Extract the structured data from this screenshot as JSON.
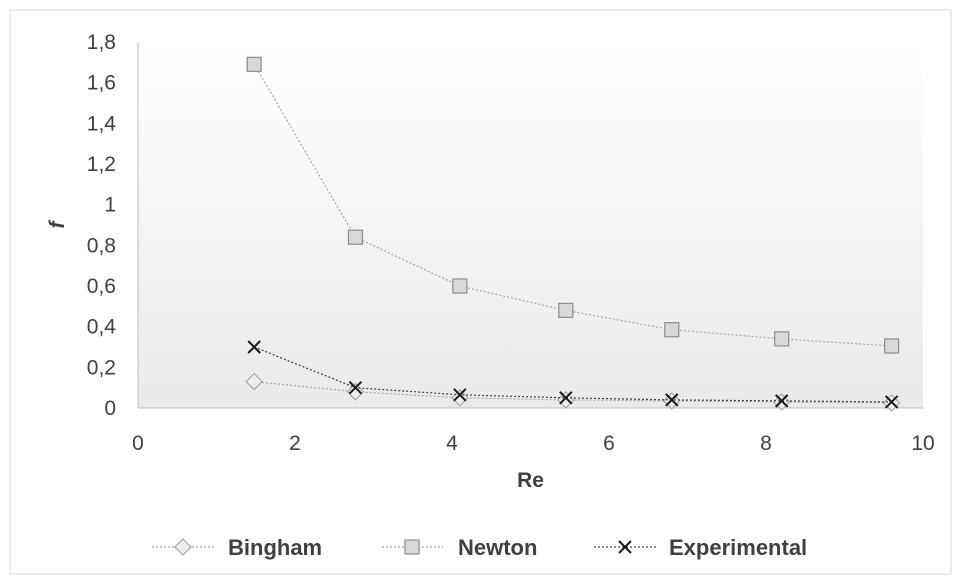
{
  "chart_data": {
    "type": "scatter",
    "title": "",
    "xlabel": "Re",
    "ylabel": "f",
    "xlim": [
      0,
      10
    ],
    "ylim": [
      0,
      1.8
    ],
    "x_ticks": [
      "0",
      "2",
      "4",
      "6",
      "8",
      "10"
    ],
    "y_ticks": [
      "0",
      "0,2",
      "0,4",
      "0,6",
      "0,8",
      "1",
      "1,2",
      "1,4",
      "1,6",
      "1,8"
    ],
    "grid": false,
    "legend": "bottom",
    "series": [
      {
        "name": "Bingham",
        "marker": "diamond",
        "color": "#bfbfbf",
        "x": [
          1.48,
          2.77,
          4.1,
          5.45,
          6.8,
          8.2,
          9.6
        ],
        "y": [
          0.13,
          0.08,
          0.05,
          0.04,
          0.035,
          0.03,
          0.025
        ]
      },
      {
        "name": "Newton",
        "marker": "square",
        "color": "#a6a6a6",
        "x": [
          1.48,
          2.77,
          4.1,
          5.45,
          6.8,
          8.2,
          9.6
        ],
        "y": [
          1.69,
          0.84,
          0.6,
          0.48,
          0.385,
          0.34,
          0.305
        ]
      },
      {
        "name": "Experimental",
        "marker": "x",
        "color": "#1a1a1a",
        "x": [
          1.48,
          2.77,
          4.1,
          5.45,
          6.8,
          8.2,
          9.6
        ],
        "y": [
          0.3,
          0.1,
          0.065,
          0.05,
          0.04,
          0.035,
          0.03
        ]
      }
    ]
  }
}
